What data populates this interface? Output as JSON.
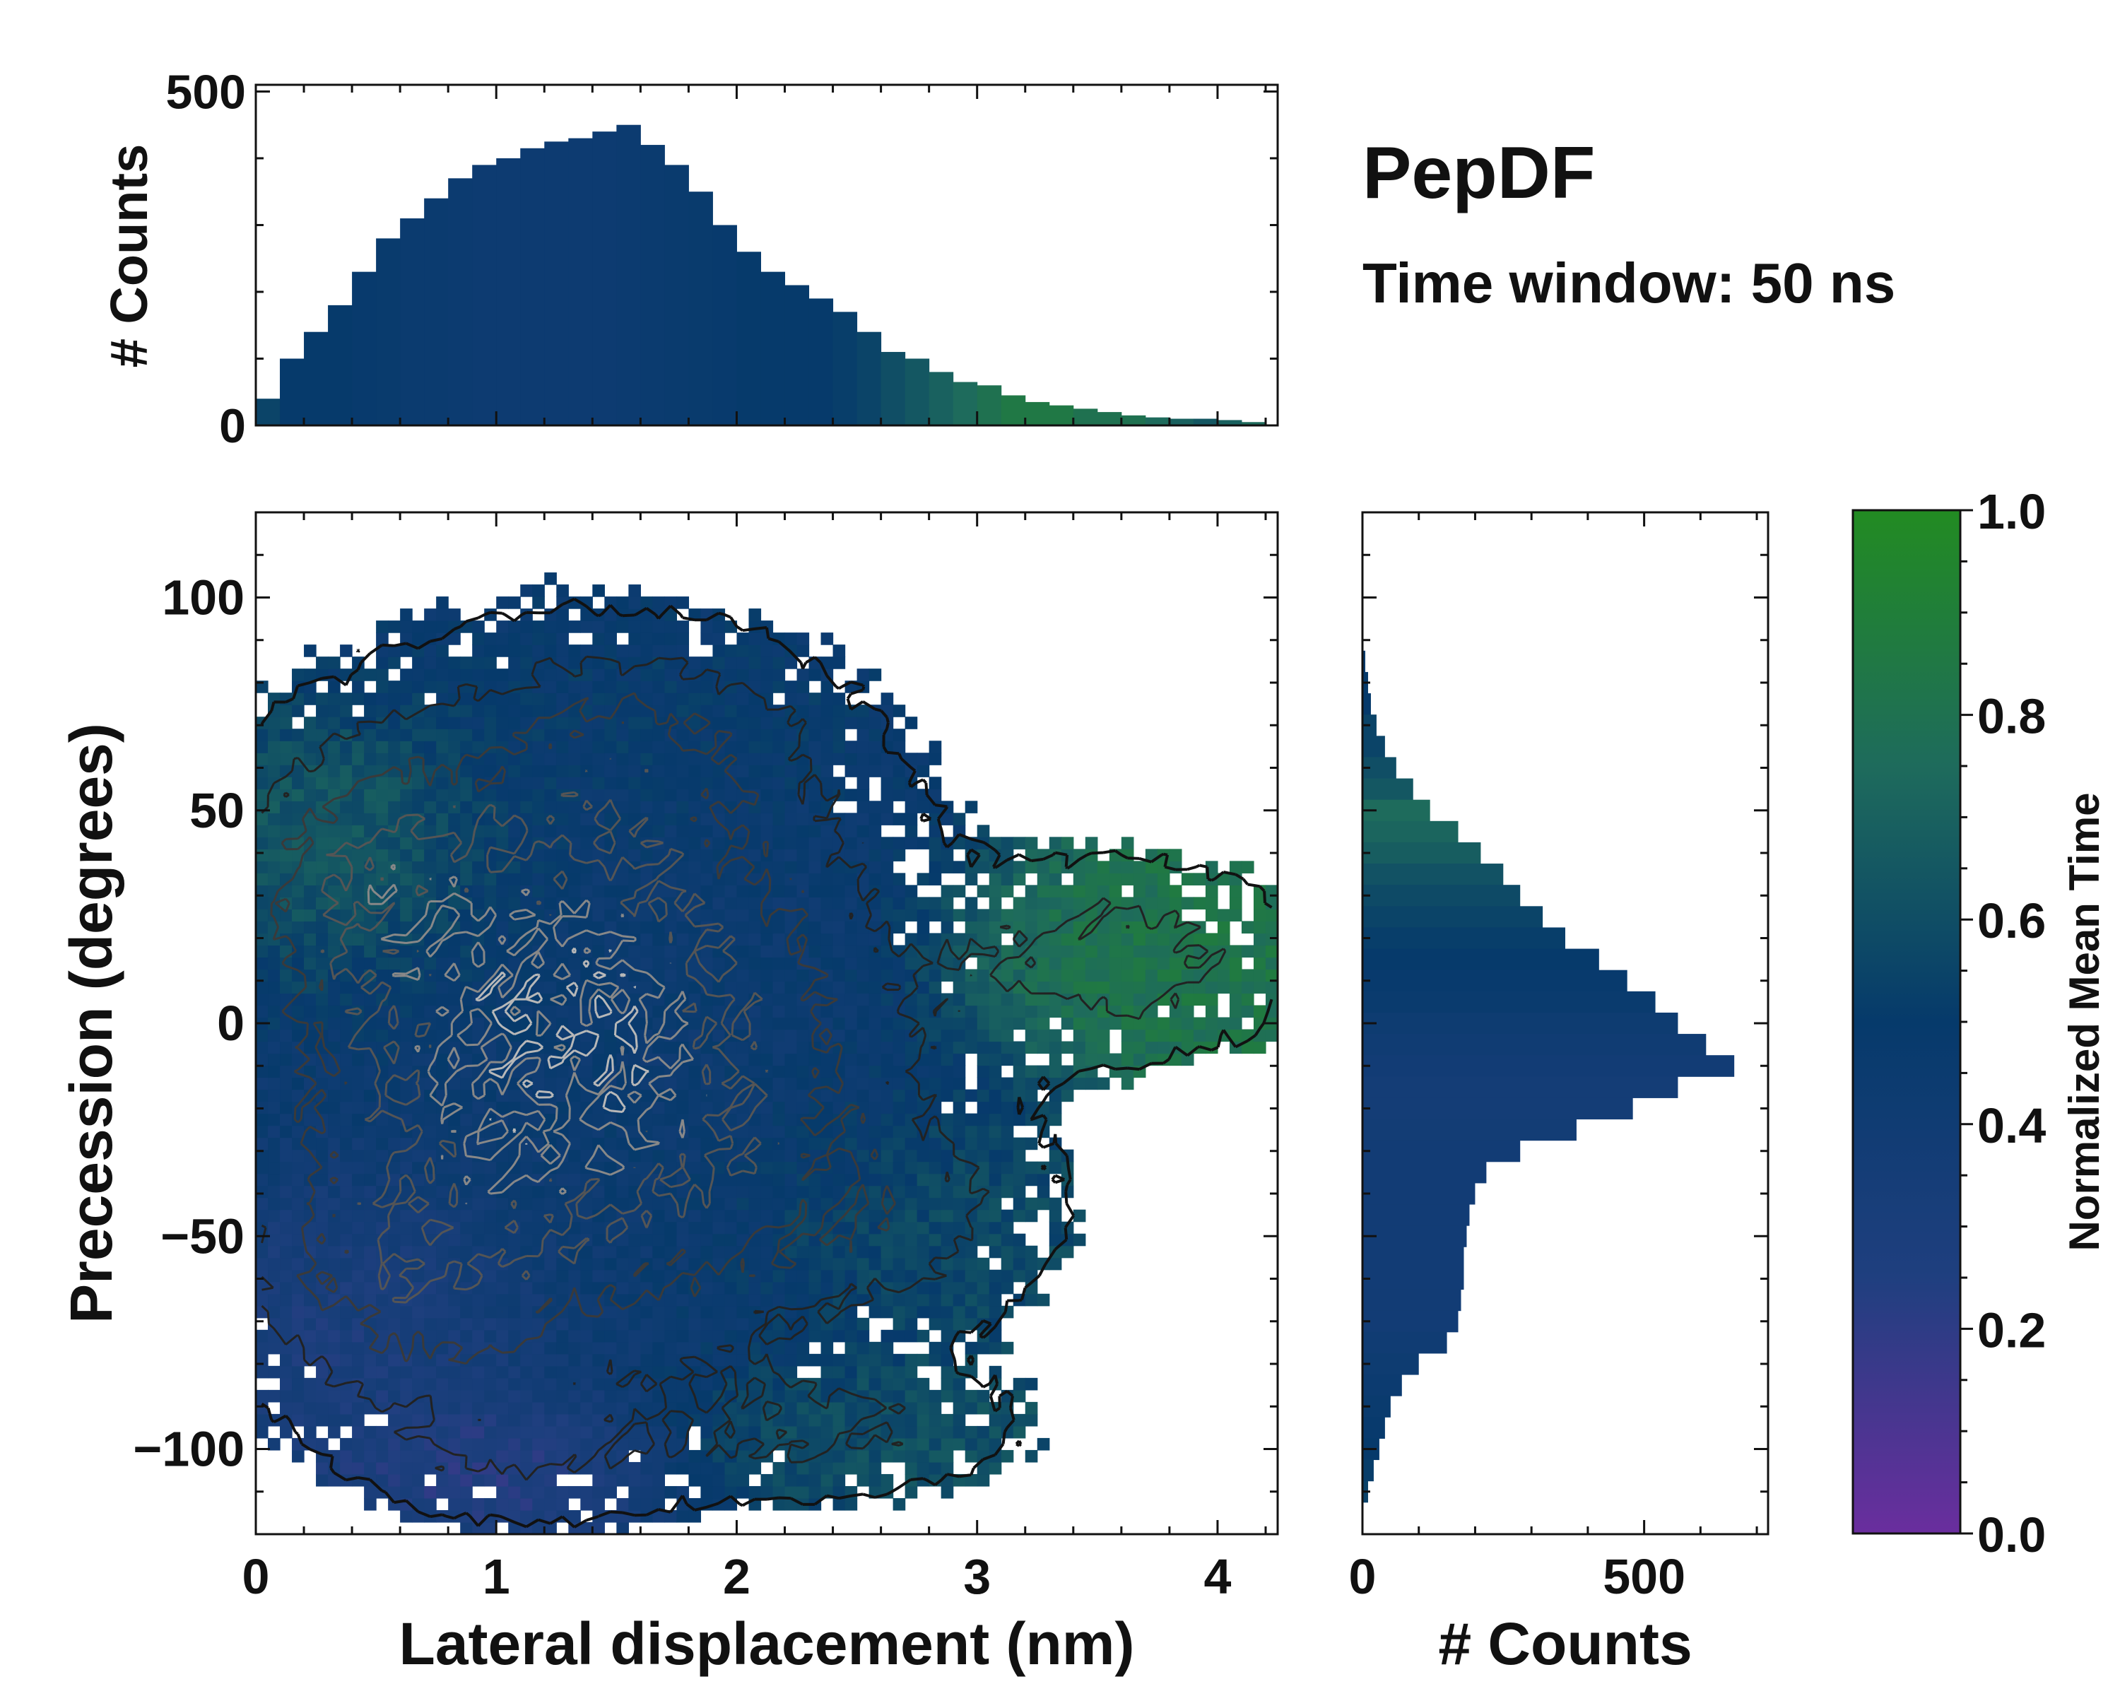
{
  "chart_data": [
    {
      "id": "top-marginal",
      "type": "bar",
      "orientation": "vertical",
      "ylabel": "# Counts",
      "xlim": [
        0,
        4.25
      ],
      "ylim": [
        0,
        510
      ],
      "yticks": [
        0,
        500
      ],
      "ytick_labels": [
        "0",
        "500"
      ],
      "bin_centers": [
        0.05,
        0.15,
        0.25,
        0.35,
        0.45,
        0.55,
        0.65,
        0.75,
        0.85,
        0.95,
        1.05,
        1.15,
        1.25,
        1.35,
        1.45,
        1.55,
        1.65,
        1.75,
        1.85,
        1.95,
        2.05,
        2.15,
        2.25,
        2.35,
        2.45,
        2.55,
        2.65,
        2.75,
        2.85,
        2.95,
        3.05,
        3.15,
        3.25,
        3.35,
        3.45,
        3.55,
        3.65,
        3.75,
        3.85,
        3.95,
        4.05,
        4.15
      ],
      "values": [
        40,
        100,
        140,
        180,
        230,
        280,
        310,
        340,
        370,
        390,
        400,
        415,
        425,
        430,
        440,
        450,
        420,
        390,
        350,
        300,
        260,
        230,
        210,
        190,
        170,
        140,
        110,
        100,
        80,
        65,
        60,
        45,
        35,
        30,
        25,
        20,
        15,
        12,
        10,
        10,
        8,
        5
      ],
      "mean_time": [
        0.55,
        0.5,
        0.5,
        0.5,
        0.48,
        0.47,
        0.45,
        0.45,
        0.44,
        0.43,
        0.43,
        0.43,
        0.43,
        0.43,
        0.43,
        0.44,
        0.45,
        0.46,
        0.47,
        0.48,
        0.5,
        0.5,
        0.5,
        0.5,
        0.52,
        0.55,
        0.6,
        0.65,
        0.7,
        0.75,
        0.8,
        0.85,
        0.85,
        0.85,
        0.8,
        0.8,
        0.8,
        0.75,
        0.7,
        0.65,
        0.7,
        0.75
      ]
    },
    {
      "id": "main-heatmap",
      "type": "heatmap",
      "xlabel": "Lateral displacement (nm)",
      "ylabel": "Precession (degrees)",
      "xlim": [
        0,
        4.25
      ],
      "ylim": [
        -120,
        120
      ],
      "xticks": [
        0,
        1,
        2,
        3,
        4
      ],
      "xtick_labels": [
        "0",
        "1",
        "2",
        "3",
        "4"
      ],
      "yticks": [
        -100,
        -50,
        0,
        50,
        100
      ],
      "ytick_labels": [
        "−100",
        "−50",
        "0",
        "50",
        "100"
      ],
      "description_of_data": "2D distribution of counts coloured by normalized mean time, overlaid with density contours",
      "clusters": [
        {
          "x": 1.3,
          "y": -5,
          "sx": 0.75,
          "sy": 42,
          "weight": 1.0,
          "mean_time": 0.45
        },
        {
          "x": 0.5,
          "y": 35,
          "sx": 0.35,
          "sy": 18,
          "weight": 0.35,
          "mean_time": 0.8
        },
        {
          "x": 1.6,
          "y": 65,
          "sx": 0.45,
          "sy": 14,
          "weight": 0.25,
          "mean_time": 0.52
        },
        {
          "x": 3.6,
          "y": 15,
          "sx": 0.45,
          "sy": 14,
          "weight": 0.25,
          "mean_time": 0.82
        },
        {
          "x": 0.6,
          "y": -60,
          "sx": 0.4,
          "sy": 18,
          "weight": 0.3,
          "mean_time": 0.2
        },
        {
          "x": 2.6,
          "y": -45,
          "sx": 0.45,
          "sy": 16,
          "weight": 0.2,
          "mean_time": 0.62
        },
        {
          "x": 2.4,
          "y": -95,
          "sx": 0.5,
          "sy": 10,
          "weight": 0.18,
          "mean_time": 0.62
        },
        {
          "x": 1.1,
          "y": -100,
          "sx": 0.4,
          "sy": 10,
          "weight": 0.15,
          "mean_time": 0.15
        }
      ],
      "contour_levels": [
        0.05,
        0.15,
        0.3,
        0.5,
        0.7,
        0.85
      ]
    },
    {
      "id": "right-marginal",
      "type": "bar",
      "orientation": "horizontal",
      "xlabel": "# Counts",
      "xlim": [
        0,
        720
      ],
      "ylim": [
        -120,
        120
      ],
      "xticks": [
        0,
        500
      ],
      "xtick_labels": [
        "0",
        "500"
      ],
      "bin_centers": [
        85,
        80,
        75,
        70,
        65,
        60,
        55,
        50,
        45,
        40,
        35,
        30,
        25,
        20,
        15,
        10,
        5,
        0,
        -5,
        -10,
        -15,
        -20,
        -25,
        -30,
        -35,
        -40,
        -45,
        -50,
        -55,
        -60,
        -65,
        -70,
        -75,
        -80,
        -85,
        -90,
        -95,
        -100,
        -105,
        -110
      ],
      "values": [
        5,
        10,
        15,
        25,
        40,
        60,
        90,
        120,
        170,
        210,
        250,
        280,
        320,
        360,
        420,
        470,
        520,
        560,
        610,
        660,
        560,
        480,
        380,
        280,
        220,
        200,
        190,
        185,
        180,
        180,
        175,
        170,
        150,
        100,
        70,
        50,
        40,
        30,
        20,
        10
      ],
      "mean_time": [
        0.5,
        0.5,
        0.5,
        0.55,
        0.55,
        0.6,
        0.65,
        0.75,
        0.72,
        0.68,
        0.62,
        0.58,
        0.55,
        0.52,
        0.5,
        0.48,
        0.46,
        0.42,
        0.4,
        0.38,
        0.36,
        0.36,
        0.37,
        0.38,
        0.38,
        0.38,
        0.38,
        0.38,
        0.38,
        0.38,
        0.38,
        0.38,
        0.4,
        0.42,
        0.44,
        0.46,
        0.48,
        0.5,
        0.52,
        0.54
      ]
    }
  ],
  "annotations": {
    "title": "PepDF",
    "subtitle": "Time window: 50 ns"
  },
  "colorbar": {
    "label": "Normalized Mean Time",
    "range": [
      0.0,
      1.0
    ],
    "ticks": [
      0.0,
      0.2,
      0.4,
      0.6,
      0.8,
      1.0
    ],
    "tick_labels": [
      "0.0",
      "0.2",
      "0.4",
      "0.6",
      "0.8",
      "1.0"
    ],
    "stops": [
      "#6a2e9e",
      "#1f3f7f",
      "#063a6b",
      "#1e6b5c",
      "#228b22"
    ]
  }
}
